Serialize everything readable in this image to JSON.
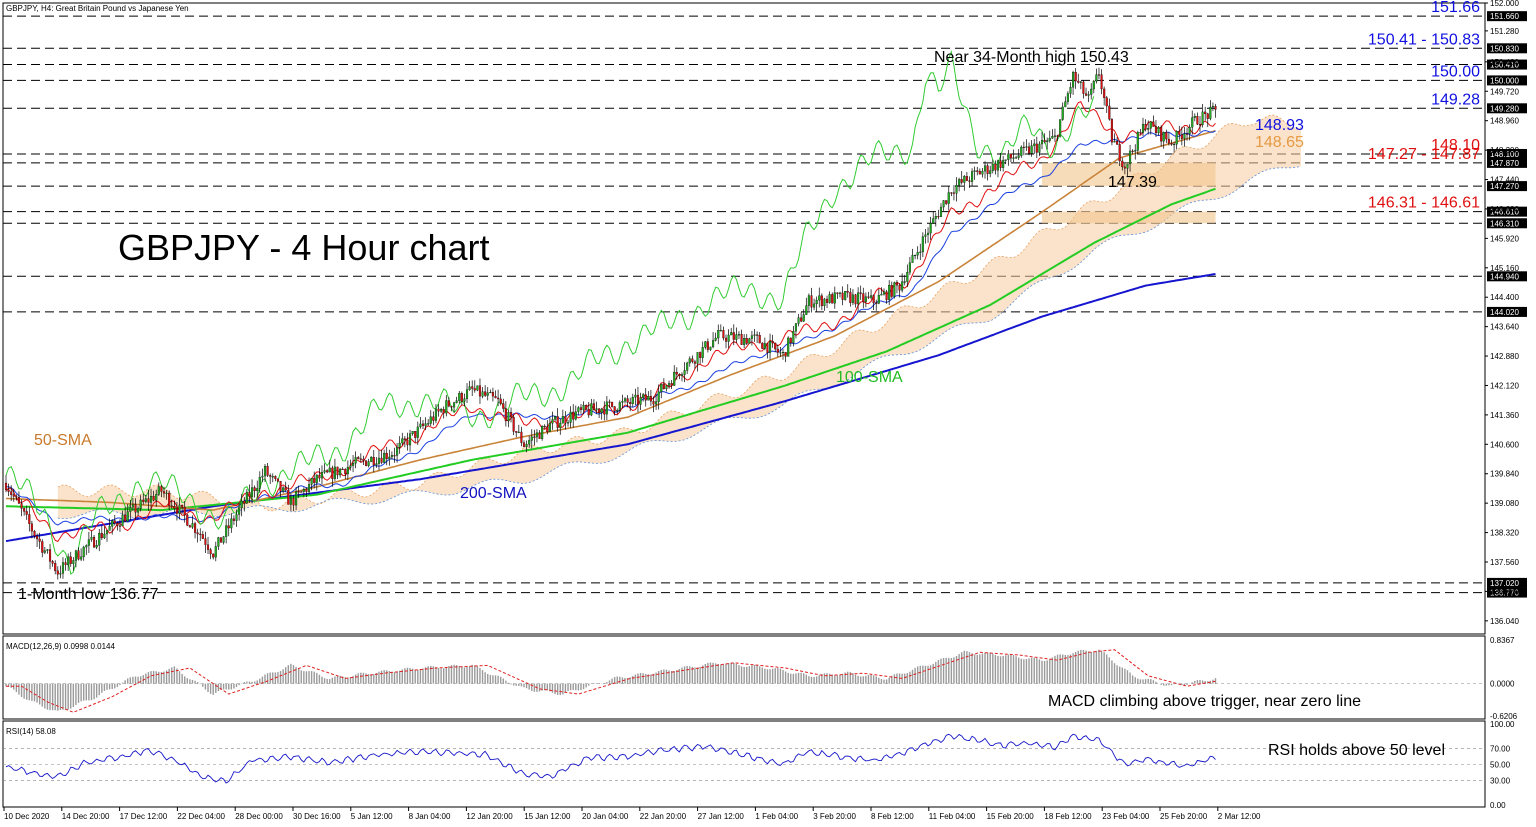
{
  "chart_data": {
    "type": "candlestick",
    "symbol_line": "GBPJPY, H4:  Great Britain Pound vs Japanese Yen",
    "title": "GBPJPY - 4 Hour chart",
    "y_axis_ticks": [
      "152.000",
      "151.280",
      "150.480",
      "149.720",
      "148.960",
      "148.200",
      "147.440",
      "146.680",
      "145.920",
      "145.160",
      "144.400",
      "143.640",
      "142.880",
      "142.120",
      "141.360",
      "140.600",
      "139.840",
      "139.080",
      "138.320",
      "137.560",
      "136.800",
      "136.040"
    ],
    "ylim": [
      135.7,
      152.0
    ],
    "x_axis_ticks": [
      "10 Dec 2020",
      "14 Dec 20:00",
      "17 Dec 12:00",
      "22 Dec 04:00",
      "28 Dec 00:00",
      "30 Dec 16:00",
      "5 Jan 12:00",
      "8 Jan 04:00",
      "12 Jan 20:00",
      "15 Jan 12:00",
      "20 Jan 04:00",
      "22 Jan 20:00",
      "27 Jan 12:00",
      "1 Feb 04:00",
      "3 Feb 20:00",
      "8 Feb 12:00",
      "11 Feb 04:00",
      "15 Feb 20:00",
      "18 Feb 12:00",
      "23 Feb 04:00",
      "25 Feb 20:00",
      "2 Mar 12:00"
    ],
    "levels": [
      {
        "value": 151.66,
        "label": "151.660",
        "annotation": "151.66",
        "color": "#1010e0"
      },
      {
        "value": 150.83,
        "label": "150.830",
        "annotation": "150.41 - 150.83",
        "color": "#1010e0"
      },
      {
        "value": 150.41,
        "label": "150.410",
        "annotation": "",
        "color": "#1010e0"
      },
      {
        "value": 150.0,
        "label": "150.000",
        "annotation": "150.00",
        "color": "#1010e0"
      },
      {
        "value": 149.28,
        "label": "149.280",
        "annotation": "149.28",
        "color": "#1010e0"
      },
      {
        "value": 148.1,
        "label": "148.100",
        "annotation": "148.10",
        "color": "#e01010"
      },
      {
        "value": 147.87,
        "label": "147.870",
        "annotation": "147.27 - 147.87",
        "color": "#e01010"
      },
      {
        "value": 147.27,
        "label": "147.270",
        "annotation": "",
        "color": "#e01010"
      },
      {
        "value": 146.61,
        "label": "146.610",
        "annotation": "146.31 - 146.61",
        "color": "#e01010"
      },
      {
        "value": 146.31,
        "label": "146.310",
        "annotation": "",
        "color": "#e01010"
      },
      {
        "value": 144.94,
        "label": "144.940",
        "annotation": "",
        "color": "#000000"
      },
      {
        "value": 144.02,
        "label": "144.020",
        "annotation": "",
        "color": "#000000"
      },
      {
        "value": 137.02,
        "label": "137.020",
        "annotation": "",
        "color": "#000000"
      },
      {
        "value": 136.77,
        "label": "136.770",
        "annotation": "",
        "color": "#000000"
      }
    ],
    "annotations": {
      "high": "Near 34-Month high 150.43",
      "low": "1-Month low 136.77",
      "swing": "147.39",
      "tenkan": "148.93",
      "kijun": "148.65",
      "sma50": "50-SMA",
      "sma100": "100-SMA",
      "sma200": "200-SMA"
    },
    "series_anchors": {
      "close": [
        [
          0,
          139.6
        ],
        [
          10,
          138.4
        ],
        [
          20,
          137.3
        ],
        [
          30,
          137.9
        ],
        [
          45,
          138.7
        ],
        [
          60,
          139.4
        ],
        [
          75,
          138.3
        ],
        [
          80,
          137.8
        ],
        [
          90,
          138.9
        ],
        [
          100,
          139.9
        ],
        [
          110,
          139.1
        ],
        [
          120,
          139.7
        ],
        [
          135,
          140.1
        ],
        [
          150,
          140.4
        ],
        [
          160,
          141.0
        ],
        [
          170,
          141.6
        ],
        [
          180,
          142.0
        ],
        [
          190,
          141.7
        ],
        [
          200,
          140.6
        ],
        [
          210,
          141.1
        ],
        [
          220,
          141.4
        ],
        [
          235,
          141.6
        ],
        [
          250,
          141.8
        ],
        [
          260,
          142.5
        ],
        [
          275,
          143.4
        ],
        [
          290,
          143.3
        ],
        [
          300,
          142.9
        ],
        [
          310,
          144.3
        ],
        [
          325,
          144.4
        ],
        [
          335,
          144.3
        ],
        [
          345,
          144.7
        ],
        [
          355,
          146.0
        ],
        [
          365,
          147.2
        ],
        [
          375,
          147.6
        ],
        [
          385,
          147.9
        ],
        [
          395,
          148.2
        ],
        [
          405,
          148.5
        ],
        [
          412,
          150.1
        ],
        [
          418,
          149.5
        ],
        [
          422,
          150.2
        ],
        [
          427,
          148.5
        ],
        [
          432,
          147.8
        ],
        [
          440,
          148.9
        ],
        [
          450,
          148.4
        ],
        [
          460,
          149.0
        ],
        [
          467,
          149.2
        ]
      ],
      "sma50": [
        [
          0,
          139.2
        ],
        [
          40,
          139.1
        ],
        [
          80,
          138.9
        ],
        [
          120,
          139.5
        ],
        [
          160,
          140.2
        ],
        [
          200,
          140.8
        ],
        [
          240,
          141.3
        ],
        [
          280,
          142.4
        ],
        [
          320,
          143.4
        ],
        [
          360,
          144.8
        ],
        [
          400,
          146.6
        ],
        [
          430,
          148.0
        ],
        [
          467,
          148.7
        ]
      ],
      "sma100": [
        [
          0,
          139.0
        ],
        [
          60,
          138.9
        ],
        [
          120,
          139.3
        ],
        [
          180,
          140.2
        ],
        [
          240,
          140.9
        ],
        [
          300,
          142.1
        ],
        [
          340,
          143.0
        ],
        [
          380,
          144.2
        ],
        [
          420,
          145.8
        ],
        [
          450,
          146.8
        ],
        [
          467,
          147.2
        ]
      ],
      "sma200": [
        [
          0,
          138.1
        ],
        [
          80,
          139.0
        ],
        [
          160,
          139.7
        ],
        [
          240,
          140.6
        ],
        [
          300,
          141.7
        ],
        [
          360,
          142.9
        ],
        [
          400,
          143.9
        ],
        [
          440,
          144.7
        ],
        [
          467,
          145.0
        ]
      ],
      "tenkan": [
        [
          0,
          139.4
        ],
        [
          20,
          138.3
        ],
        [
          40,
          138.4
        ],
        [
          60,
          139.0
        ],
        [
          80,
          138.7
        ],
        [
          100,
          139.4
        ],
        [
          120,
          139.7
        ],
        [
          140,
          140.3
        ],
        [
          160,
          140.9
        ],
        [
          180,
          141.6
        ],
        [
          200,
          141.1
        ],
        [
          220,
          141.3
        ],
        [
          250,
          141.8
        ],
        [
          270,
          142.8
        ],
        [
          290,
          143.2
        ],
        [
          310,
          143.5
        ],
        [
          330,
          144.1
        ],
        [
          350,
          145.0
        ],
        [
          365,
          146.5
        ],
        [
          380,
          147.2
        ],
        [
          400,
          148.0
        ],
        [
          415,
          149.3
        ],
        [
          430,
          148.6
        ],
        [
          450,
          148.8
        ],
        [
          467,
          148.9
        ]
      ],
      "kijun": [
        [
          0,
          139.5
        ],
        [
          20,
          138.6
        ],
        [
          50,
          138.7
        ],
        [
          80,
          138.7
        ],
        [
          100,
          139.3
        ],
        [
          130,
          139.6
        ],
        [
          160,
          140.5
        ],
        [
          180,
          141.4
        ],
        [
          200,
          141.3
        ],
        [
          230,
          141.4
        ],
        [
          260,
          142.0
        ],
        [
          290,
          142.9
        ],
        [
          310,
          143.3
        ],
        [
          330,
          144.0
        ],
        [
          350,
          144.6
        ],
        [
          365,
          146.0
        ],
        [
          380,
          146.8
        ],
        [
          400,
          147.5
        ],
        [
          415,
          148.3
        ],
        [
          430,
          148.5
        ],
        [
          450,
          148.6
        ],
        [
          467,
          148.7
        ]
      ],
      "chikou": [
        [
          0,
          139.8
        ],
        [
          15,
          138.8
        ],
        [
          25,
          137.5
        ],
        [
          35,
          138.7
        ],
        [
          50,
          139.6
        ],
        [
          70,
          139.3
        ],
        [
          85,
          138.5
        ],
        [
          100,
          139.7
        ],
        [
          115,
          140.0
        ],
        [
          130,
          140.6
        ],
        [
          145,
          141.5
        ],
        [
          160,
          141.8
        ],
        [
          175,
          141.4
        ],
        [
          190,
          141.5
        ],
        [
          205,
          141.9
        ],
        [
          220,
          142.3
        ],
        [
          240,
          143.3
        ],
        [
          255,
          143.6
        ],
        [
          270,
          144.3
        ],
        [
          290,
          144.6
        ],
        [
          300,
          144.4
        ],
        [
          310,
          146.0
        ],
        [
          320,
          147.3
        ],
        [
          330,
          147.7
        ],
        [
          340,
          148.1
        ],
        [
          350,
          148.4
        ],
        [
          355,
          150.1
        ],
        [
          360,
          149.6
        ],
        [
          365,
          150.3
        ],
        [
          375,
          148.5
        ],
        [
          385,
          147.9
        ],
        [
          395,
          148.9
        ],
        [
          405,
          148.4
        ],
        [
          420,
          149.2
        ]
      ],
      "cloud_a": [
        [
          60,
          139.4
        ],
        [
          100,
          139.0
        ],
        [
          160,
          139.6
        ],
        [
          200,
          140.4
        ],
        [
          240,
          140.9
        ],
        [
          300,
          142.4
        ],
        [
          340,
          143.8
        ],
        [
          380,
          145.2
        ],
        [
          420,
          146.8
        ],
        [
          450,
          148.0
        ],
        [
          480,
          149.0
        ],
        [
          500,
          148.9
        ]
      ],
      "cloud_b": [
        [
          60,
          138.8
        ],
        [
          100,
          138.9
        ],
        [
          160,
          139.3
        ],
        [
          200,
          139.7
        ],
        [
          240,
          140.4
        ],
        [
          300,
          141.6
        ],
        [
          340,
          142.8
        ],
        [
          380,
          143.9
        ],
        [
          420,
          145.6
        ],
        [
          450,
          146.5
        ],
        [
          480,
          147.4
        ],
        [
          500,
          147.9
        ]
      ]
    },
    "macd": {
      "title": "MACD(12,26,9) 0.0998 0.0144",
      "ticks": [
        "0.8367",
        "0.0000",
        "-0.6206"
      ],
      "annotation": "MACD climbing above trigger, near zero line",
      "anchors": [
        [
          0,
          -0.05
        ],
        [
          10,
          -0.35
        ],
        [
          20,
          -0.55
        ],
        [
          35,
          -0.25
        ],
        [
          50,
          0.15
        ],
        [
          65,
          0.3
        ],
        [
          80,
          -0.2
        ],
        [
          95,
          0.05
        ],
        [
          110,
          0.35
        ],
        [
          125,
          0.1
        ],
        [
          140,
          0.2
        ],
        [
          160,
          0.3
        ],
        [
          180,
          0.35
        ],
        [
          200,
          -0.1
        ],
        [
          215,
          -0.2
        ],
        [
          235,
          0.1
        ],
        [
          255,
          0.25
        ],
        [
          275,
          0.4
        ],
        [
          295,
          0.3
        ],
        [
          310,
          0.15
        ],
        [
          325,
          0.2
        ],
        [
          340,
          0.1
        ],
        [
          355,
          0.35
        ],
        [
          370,
          0.6
        ],
        [
          385,
          0.55
        ],
        [
          400,
          0.45
        ],
        [
          412,
          0.6
        ],
        [
          422,
          0.65
        ],
        [
          435,
          0.15
        ],
        [
          450,
          -0.05
        ],
        [
          467,
          0.1
        ]
      ]
    },
    "rsi": {
      "title": "RSI(14) 58.08",
      "ticks": [
        "100.00",
        "70.00",
        "50.00",
        "30.00",
        "0.00"
      ],
      "annotation": "RSI holds above 50 level",
      "anchors": [
        [
          0,
          48
        ],
        [
          10,
          40
        ],
        [
          20,
          35
        ],
        [
          30,
          52
        ],
        [
          45,
          60
        ],
        [
          55,
          68
        ],
        [
          65,
          56
        ],
        [
          75,
          35
        ],
        [
          85,
          30
        ],
        [
          95,
          55
        ],
        [
          110,
          60
        ],
        [
          125,
          52
        ],
        [
          140,
          60
        ],
        [
          155,
          66
        ],
        [
          170,
          65
        ],
        [
          185,
          62
        ],
        [
          200,
          38
        ],
        [
          210,
          35
        ],
        [
          225,
          58
        ],
        [
          240,
          60
        ],
        [
          255,
          68
        ],
        [
          270,
          72
        ],
        [
          285,
          62
        ],
        [
          300,
          50
        ],
        [
          310,
          66
        ],
        [
          325,
          58
        ],
        [
          335,
          55
        ],
        [
          345,
          63
        ],
        [
          355,
          75
        ],
        [
          365,
          85
        ],
        [
          375,
          80
        ],
        [
          385,
          74
        ],
        [
          395,
          76
        ],
        [
          405,
          72
        ],
        [
          412,
          85
        ],
        [
          422,
          80
        ],
        [
          432,
          50
        ],
        [
          440,
          56
        ],
        [
          455,
          48
        ],
        [
          467,
          58
        ]
      ]
    },
    "grid": false,
    "legend": "none"
  }
}
